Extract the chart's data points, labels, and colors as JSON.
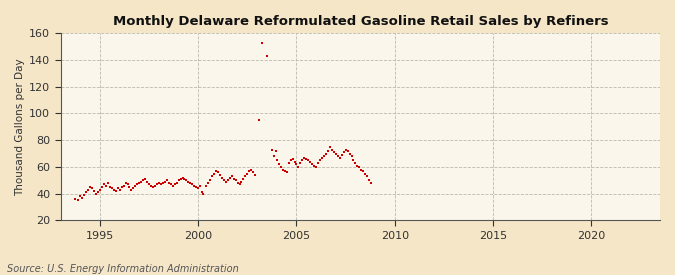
{
  "title": "Monthly Delaware Reformulated Gasoline Retail Sales by Refiners",
  "ylabel": "Thousand Gallons per Day",
  "source": "Source: U.S. Energy Information Administration",
  "background_color": "#F5E6C8",
  "plot_background_color": "#FBF6EC",
  "dot_color": "#CC0000",
  "dot_size": 3,
  "ylim": [
    20,
    160
  ],
  "yticks": [
    20,
    40,
    60,
    80,
    100,
    120,
    140,
    160
  ],
  "xlim_start": 1993.0,
  "xlim_end": 2023.5,
  "xticks": [
    1995,
    2000,
    2005,
    2010,
    2015,
    2020
  ],
  "data": [
    [
      1993.75,
      36
    ],
    [
      1993.9,
      35
    ],
    [
      1994.0,
      38
    ],
    [
      1994.1,
      37
    ],
    [
      1994.2,
      39
    ],
    [
      1994.3,
      41
    ],
    [
      1994.4,
      43
    ],
    [
      1994.5,
      45
    ],
    [
      1994.6,
      44
    ],
    [
      1994.7,
      42
    ],
    [
      1994.8,
      40
    ],
    [
      1994.9,
      41
    ],
    [
      1995.0,
      43
    ],
    [
      1995.1,
      45
    ],
    [
      1995.2,
      47
    ],
    [
      1995.3,
      46
    ],
    [
      1995.4,
      48
    ],
    [
      1995.5,
      45
    ],
    [
      1995.6,
      44
    ],
    [
      1995.7,
      43
    ],
    [
      1995.8,
      42
    ],
    [
      1995.9,
      44
    ],
    [
      1996.0,
      43
    ],
    [
      1996.1,
      45
    ],
    [
      1996.2,
      46
    ],
    [
      1996.3,
      48
    ],
    [
      1996.4,
      47
    ],
    [
      1996.5,
      45
    ],
    [
      1996.6,
      43
    ],
    [
      1996.7,
      44
    ],
    [
      1996.8,
      46
    ],
    [
      1996.9,
      47
    ],
    [
      1997.0,
      48
    ],
    [
      1997.1,
      49
    ],
    [
      1997.2,
      50
    ],
    [
      1997.3,
      51
    ],
    [
      1997.4,
      49
    ],
    [
      1997.5,
      47
    ],
    [
      1997.6,
      46
    ],
    [
      1997.7,
      45
    ],
    [
      1997.8,
      46
    ],
    [
      1997.9,
      47
    ],
    [
      1998.0,
      48
    ],
    [
      1998.1,
      47
    ],
    [
      1998.2,
      48
    ],
    [
      1998.3,
      49
    ],
    [
      1998.4,
      50
    ],
    [
      1998.5,
      48
    ],
    [
      1998.6,
      47
    ],
    [
      1998.7,
      46
    ],
    [
      1998.8,
      47
    ],
    [
      1998.9,
      48
    ],
    [
      1999.0,
      50
    ],
    [
      1999.1,
      51
    ],
    [
      1999.2,
      52
    ],
    [
      1999.3,
      51
    ],
    [
      1999.4,
      50
    ],
    [
      1999.5,
      49
    ],
    [
      1999.6,
      48
    ],
    [
      1999.7,
      47
    ],
    [
      1999.8,
      46
    ],
    [
      1999.9,
      45
    ],
    [
      2000.0,
      44
    ],
    [
      2000.1,
      46
    ],
    [
      2000.2,
      41
    ],
    [
      2000.25,
      40
    ],
    [
      2000.4,
      46
    ],
    [
      2000.5,
      48
    ],
    [
      2000.6,
      50
    ],
    [
      2000.7,
      53
    ],
    [
      2000.8,
      55
    ],
    [
      2000.9,
      57
    ],
    [
      2001.0,
      56
    ],
    [
      2001.1,
      54
    ],
    [
      2001.2,
      52
    ],
    [
      2001.3,
      50
    ],
    [
      2001.4,
      49
    ],
    [
      2001.5,
      50
    ],
    [
      2001.6,
      52
    ],
    [
      2001.7,
      53
    ],
    [
      2001.8,
      51
    ],
    [
      2001.9,
      50
    ],
    [
      2002.0,
      48
    ],
    [
      2002.1,
      47
    ],
    [
      2002.2,
      49
    ],
    [
      2002.3,
      51
    ],
    [
      2002.4,
      53
    ],
    [
      2002.5,
      55
    ],
    [
      2002.6,
      57
    ],
    [
      2002.7,
      58
    ],
    [
      2002.8,
      56
    ],
    [
      2002.9,
      54
    ],
    [
      2003.1,
      95
    ],
    [
      2003.25,
      153
    ],
    [
      2003.5,
      143
    ],
    [
      2003.75,
      73
    ],
    [
      2003.85,
      68
    ],
    [
      2003.95,
      72
    ],
    [
      2004.0,
      65
    ],
    [
      2004.1,
      62
    ],
    [
      2004.2,
      60
    ],
    [
      2004.3,
      58
    ],
    [
      2004.4,
      57
    ],
    [
      2004.5,
      56
    ],
    [
      2004.6,
      63
    ],
    [
      2004.7,
      65
    ],
    [
      2004.8,
      66
    ],
    [
      2004.9,
      64
    ],
    [
      2005.0,
      62
    ],
    [
      2005.1,
      60
    ],
    [
      2005.2,
      63
    ],
    [
      2005.3,
      65
    ],
    [
      2005.4,
      67
    ],
    [
      2005.5,
      66
    ],
    [
      2005.6,
      65
    ],
    [
      2005.7,
      64
    ],
    [
      2005.8,
      62
    ],
    [
      2005.9,
      61
    ],
    [
      2006.0,
      60
    ],
    [
      2006.1,
      63
    ],
    [
      2006.2,
      65
    ],
    [
      2006.3,
      67
    ],
    [
      2006.4,
      68
    ],
    [
      2006.5,
      70
    ],
    [
      2006.6,
      72
    ],
    [
      2006.7,
      75
    ],
    [
      2006.8,
      73
    ],
    [
      2006.9,
      71
    ],
    [
      2007.0,
      70
    ],
    [
      2007.1,
      68
    ],
    [
      2007.2,
      67
    ],
    [
      2007.3,
      69
    ],
    [
      2007.4,
      71
    ],
    [
      2007.5,
      73
    ],
    [
      2007.6,
      72
    ],
    [
      2007.7,
      70
    ],
    [
      2007.8,
      68
    ],
    [
      2007.9,
      65
    ],
    [
      2008.0,
      63
    ],
    [
      2008.1,
      61
    ],
    [
      2008.2,
      60
    ],
    [
      2008.3,
      58
    ],
    [
      2008.4,
      57
    ],
    [
      2008.5,
      55
    ],
    [
      2008.6,
      53
    ],
    [
      2008.7,
      50
    ],
    [
      2008.8,
      48
    ]
  ]
}
